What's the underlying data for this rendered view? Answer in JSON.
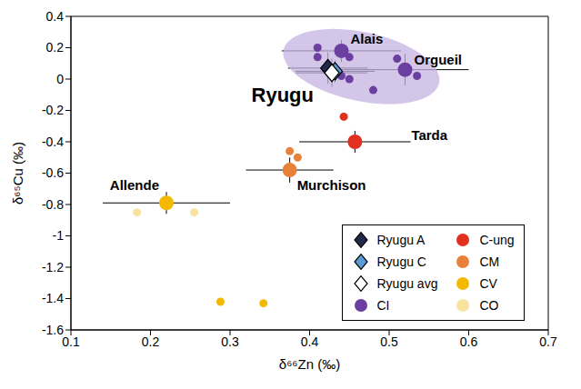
{
  "chart_data": {
    "type": "scatter",
    "x_label": "δ⁶⁶Zn (‰)",
    "y_label": "δ⁶⁵Cu (‰)",
    "xlim": [
      0.1,
      0.7
    ],
    "xticks": [
      0.1,
      0.2,
      0.3,
      0.4,
      0.5,
      0.6,
      0.7
    ],
    "ylim": [
      -1.6,
      0.4
    ],
    "yticks": [
      -1.6,
      -1.4,
      -1.2,
      -1,
      -0.8,
      -0.6,
      -0.4,
      -0.2,
      0,
      0.2,
      0.4
    ],
    "legend": "lower right",
    "series": [
      {
        "name": "CI",
        "color": "#6b3fa0",
        "marker": "circle",
        "region": {
          "cx": 0.465,
          "cy": 0.08,
          "rx": 0.1,
          "ry": 0.22,
          "color": "#c4b3e0"
        },
        "x": [
          0.44,
          0.52,
          0.41,
          0.45,
          0.51,
          0.535,
          0.48,
          0.44,
          0.41,
          0.45
        ],
        "values": [
          0.18,
          0.06,
          0.2,
          0.14,
          0.13,
          0.02,
          -0.07,
          0.02,
          0.14,
          0.0
        ],
        "x_error": [
          0.075,
          0.08,
          null,
          null,
          null,
          null,
          null,
          null,
          null,
          null
        ],
        "y_error": [
          0.07,
          0.1,
          null,
          null,
          null,
          null,
          null,
          null,
          null,
          null
        ],
        "labels": [
          "Alais",
          "Orgueil",
          null,
          null,
          null,
          null,
          null,
          null,
          null,
          null
        ]
      },
      {
        "name": "C-ung",
        "color": "#e0301e",
        "marker": "circle",
        "x": [
          0.457,
          0.443
        ],
        "values": [
          -0.4,
          -0.24
        ],
        "x_error": [
          0.07,
          null
        ],
        "y_error": [
          0.07,
          null
        ],
        "labels": [
          "Tarda",
          null
        ]
      },
      {
        "name": "CM",
        "color": "#e8823a",
        "marker": "circle",
        "x": [
          0.375,
          0.375,
          0.385
        ],
        "values": [
          -0.58,
          -0.46,
          -0.5
        ],
        "x_error": [
          0.055,
          null,
          null
        ],
        "y_error": [
          0.08,
          null,
          null
        ],
        "labels": [
          "Murchison",
          null,
          null
        ]
      },
      {
        "name": "CV",
        "color": "#f5b800",
        "marker": "circle",
        "x": [
          0.22,
          0.288,
          0.342
        ],
        "values": [
          -0.79,
          -1.42,
          -1.43
        ],
        "x_error": [
          0.08,
          null,
          null
        ],
        "y_error": [
          0.07,
          null,
          null
        ],
        "labels": [
          "Allende",
          null,
          null
        ]
      },
      {
        "name": "CO",
        "color": "#f7e2a0",
        "marker": "circle",
        "x": [
          0.183,
          0.255
        ],
        "values": [
          -0.85,
          -0.85
        ],
        "x_error": [
          null,
          null
        ],
        "y_error": [
          null,
          null
        ],
        "labels": [
          null,
          null
        ]
      },
      {
        "name": "Ryugu A",
        "color": "#1f2a4d",
        "marker": "diamond",
        "x": [
          0.423
        ],
        "values": [
          0.07
        ],
        "x_error": [
          0.05
        ],
        "y_error": [
          0.1
        ],
        "labels": [
          null
        ]
      },
      {
        "name": "Ryugu C",
        "color": "#5b9bd5",
        "marker": "diamond",
        "x": [
          0.432
        ],
        "values": [
          0.05
        ],
        "x_error": [
          0.05
        ],
        "y_error": [
          0.07
        ],
        "labels": [
          null
        ]
      },
      {
        "name": "Ryugu avg",
        "color": "#ffffff",
        "marker": "diamond",
        "x": [
          0.428
        ],
        "values": [
          0.04
        ],
        "x_error": [
          0.045
        ],
        "y_error": [
          0.09
        ],
        "labels": [
          "Ryugu"
        ]
      }
    ]
  }
}
